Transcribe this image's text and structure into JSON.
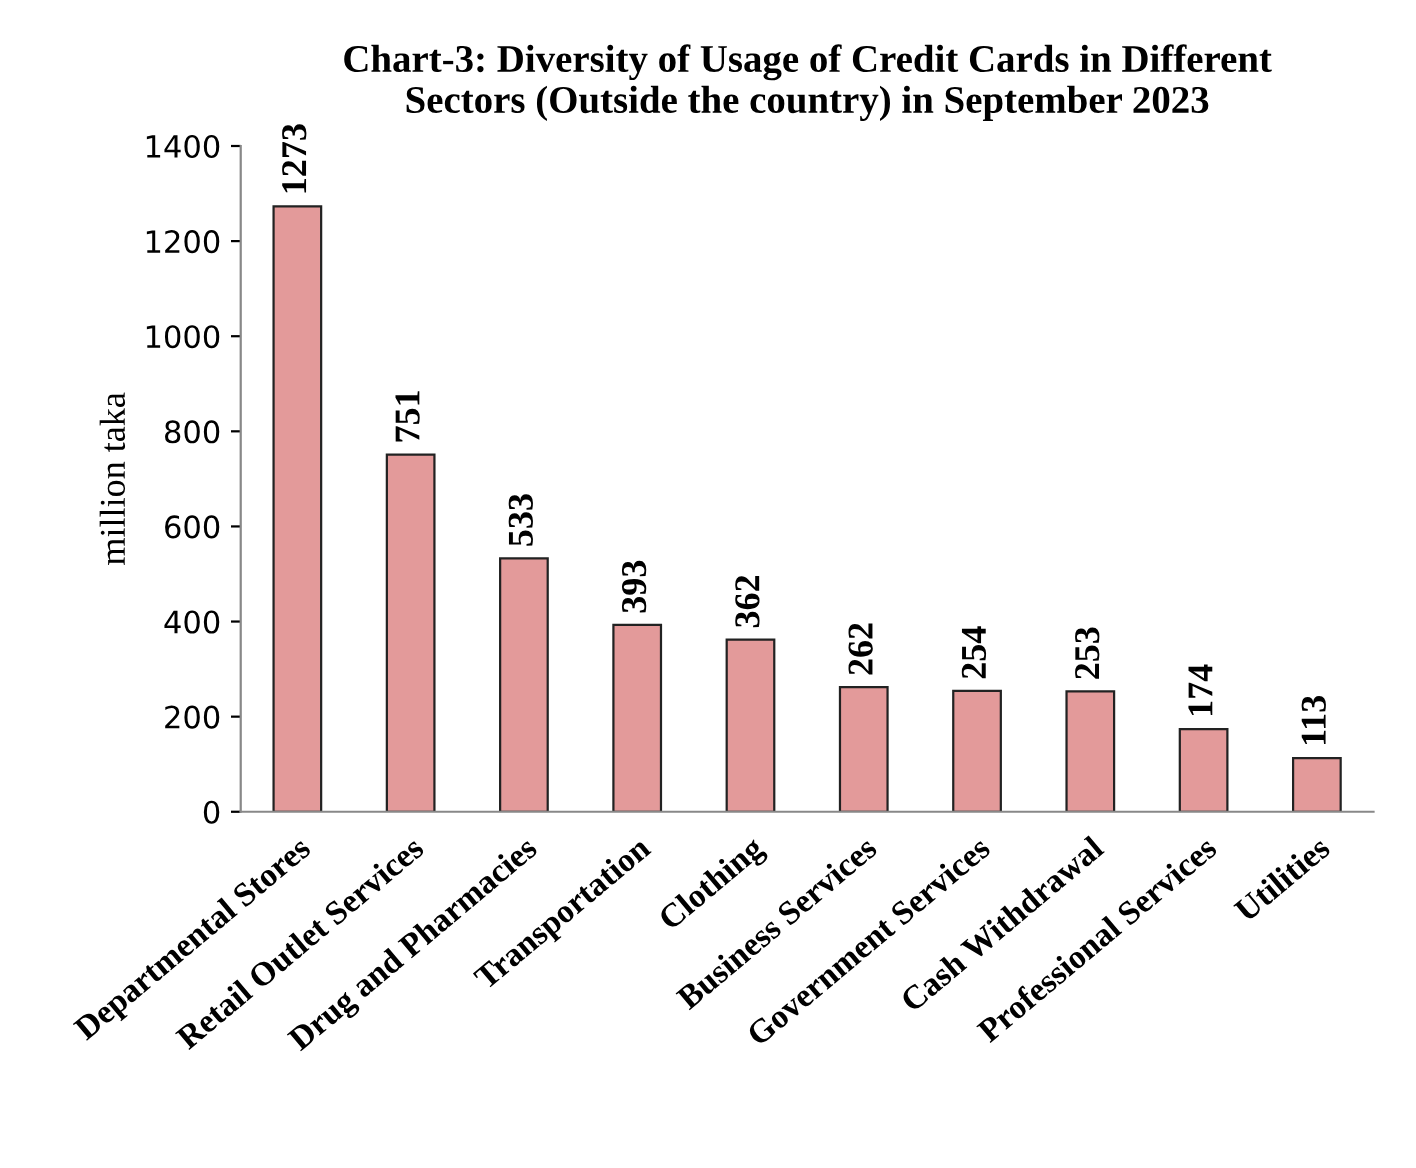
{
  "chart_data": {
    "type": "bar",
    "title": "Chart-3: Diversity of Usage of Credit Cards in Different\nSectors (Outside the country) in September 2023",
    "ylabel": "million taka",
    "categories": [
      "Departmental Stores",
      "Retail Outlet Services",
      "Drug and Pharmacies",
      "Transportation",
      "Clothing",
      "Business Services",
      "Government Services",
      "Cash Withdrawal",
      "Professional Services",
      "Utilities"
    ],
    "values": [
      1273,
      751,
      533,
      393,
      362,
      262,
      254,
      253,
      174,
      113
    ],
    "color": "#e39a9a",
    "ylim": [
      0,
      1400
    ],
    "yticks": [
      0,
      200,
      400,
      600,
      800,
      1000,
      1200,
      1400
    ],
    "data_labels": true,
    "grid": false,
    "legend": false
  }
}
